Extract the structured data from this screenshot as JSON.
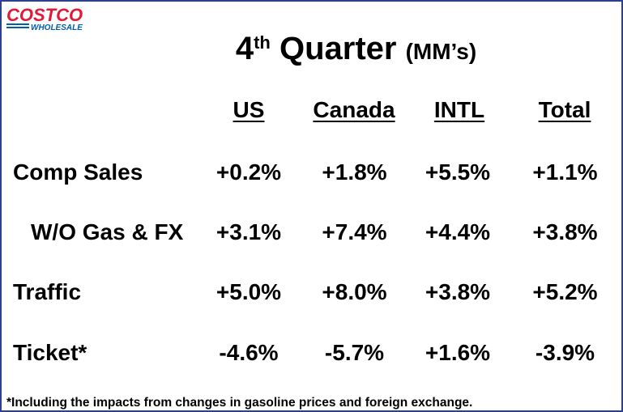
{
  "logo": {
    "brand": "COSTCO",
    "sub": "WHOLESALE",
    "red": "#e31837",
    "blue": "#005daa"
  },
  "title": {
    "main_pre": "4",
    "sup": "th",
    "main_post": " Quarter ",
    "unit": "(MM’s)"
  },
  "columns": [
    "US",
    "Canada",
    "INTL",
    "Total"
  ],
  "rows": [
    {
      "label": "Comp Sales",
      "values": [
        "+0.2%",
        "+1.8%",
        "+5.5%",
        "+1.1%"
      ]
    },
    {
      "label": "W/O Gas & FX",
      "values": [
        "+3.1%",
        "+7.4%",
        "+4.4%",
        "+3.8%"
      ]
    },
    {
      "label": "Traffic",
      "values": [
        "+5.0%",
        "+8.0%",
        "+3.8%",
        "+5.2%"
      ]
    },
    {
      "label": "Ticket*",
      "values": [
        "-4.6%",
        "-5.7%",
        "+1.6%",
        "-3.9%"
      ]
    }
  ],
  "footnote": "*Including the impacts from changes in gasoline prices and foreign exchange."
}
